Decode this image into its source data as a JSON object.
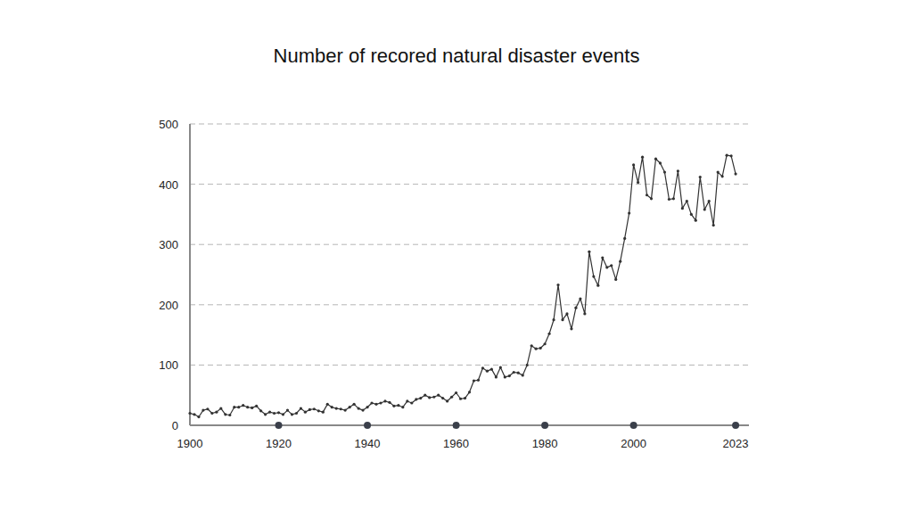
{
  "chart_data": {
    "type": "line",
    "title": "Number of recored natural disaster events",
    "x": [
      1900,
      1901,
      1902,
      1903,
      1904,
      1905,
      1906,
      1907,
      1908,
      1909,
      1910,
      1911,
      1912,
      1913,
      1914,
      1915,
      1916,
      1917,
      1918,
      1919,
      1920,
      1921,
      1922,
      1923,
      1924,
      1925,
      1926,
      1927,
      1928,
      1929,
      1930,
      1931,
      1932,
      1933,
      1934,
      1935,
      1936,
      1937,
      1938,
      1939,
      1940,
      1941,
      1942,
      1943,
      1944,
      1945,
      1946,
      1947,
      1948,
      1949,
      1950,
      1951,
      1952,
      1953,
      1954,
      1955,
      1956,
      1957,
      1958,
      1959,
      1960,
      1961,
      1962,
      1963,
      1964,
      1965,
      1966,
      1967,
      1968,
      1969,
      1970,
      1971,
      1972,
      1973,
      1974,
      1975,
      1976,
      1977,
      1978,
      1979,
      1980,
      1981,
      1982,
      1983,
      1984,
      1985,
      1986,
      1987,
      1988,
      1989,
      1990,
      1991,
      1992,
      1993,
      1994,
      1995,
      1996,
      1997,
      1998,
      1999,
      2000,
      2001,
      2002,
      2003,
      2004,
      2005,
      2006,
      2007,
      2008,
      2009,
      2010,
      2011,
      2012,
      2013,
      2014,
      2015,
      2016,
      2017,
      2018,
      2019,
      2020,
      2021,
      2022,
      2023
    ],
    "values": [
      20,
      18,
      14,
      25,
      27,
      20,
      22,
      28,
      18,
      17,
      30,
      30,
      33,
      30,
      29,
      32,
      24,
      18,
      22,
      20,
      21,
      18,
      25,
      18,
      20,
      28,
      22,
      26,
      27,
      24,
      22,
      35,
      30,
      28,
      27,
      25,
      30,
      35,
      28,
      25,
      30,
      37,
      35,
      37,
      40,
      38,
      32,
      33,
      30,
      40,
      37,
      43,
      45,
      50,
      46,
      47,
      50,
      45,
      40,
      47,
      54,
      44,
      45,
      55,
      74,
      75,
      95,
      90,
      93,
      80,
      96,
      80,
      82,
      88,
      87,
      83,
      100,
      132,
      127,
      128,
      135,
      152,
      175,
      233,
      175,
      185,
      160,
      195,
      210,
      185,
      288,
      247,
      232,
      278,
      262,
      265,
      242,
      272,
      310,
      352,
      432,
      403,
      445,
      382,
      376,
      442,
      435,
      420,
      375,
      376,
      422,
      360,
      372,
      350,
      340,
      412,
      358,
      372,
      332,
      420,
      413,
      448,
      447,
      417
    ],
    "color": "#333333",
    "marker": "circle",
    "xlim": [
      1900,
      2026
    ],
    "xticks": [
      1900,
      1920,
      1940,
      1960,
      1980,
      2000,
      2023
    ],
    "ylim": [
      0,
      500
    ],
    "yticks": [
      0,
      100,
      200,
      300,
      400,
      500
    ],
    "grid": true
  }
}
